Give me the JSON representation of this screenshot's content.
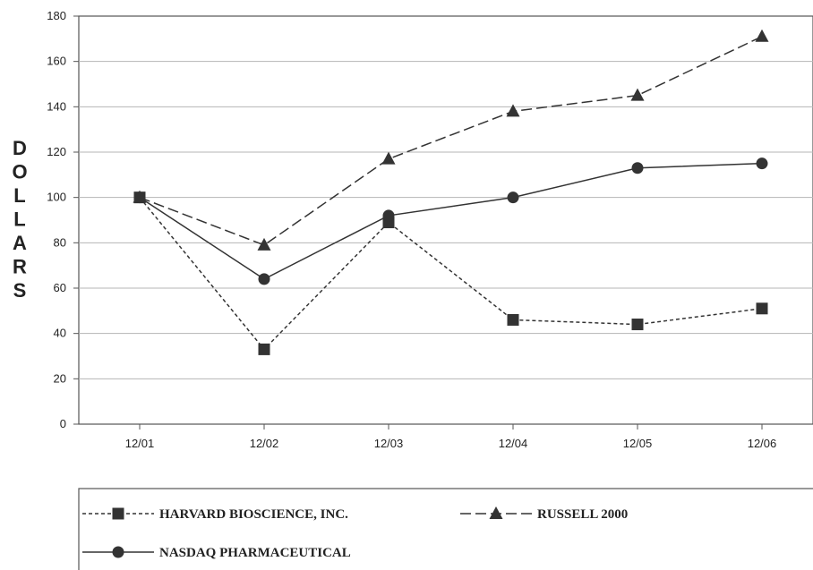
{
  "chart_data": {
    "type": "line",
    "title": "",
    "xlabel": "",
    "ylabel": "DOLLARS",
    "categories": [
      "12/01",
      "12/02",
      "12/03",
      "12/04",
      "12/05",
      "12/06"
    ],
    "ylim": [
      0,
      180
    ],
    "yticks": [
      0,
      20,
      40,
      60,
      80,
      100,
      120,
      140,
      160,
      180
    ],
    "grid": true,
    "legend_position": "bottom",
    "series": [
      {
        "name": "HARVARD BIOSCIENCE, INC.",
        "values": [
          100,
          33,
          89,
          46,
          44,
          51
        ],
        "marker": "square",
        "line": "short-dash",
        "color": "#333333"
      },
      {
        "name": "RUSSELL 2000",
        "values": [
          100,
          79,
          117,
          138,
          145,
          171
        ],
        "marker": "triangle",
        "line": "long-dash",
        "color": "#333333"
      },
      {
        "name": "NASDAQ PHARMACEUTICAL",
        "values": [
          100,
          64,
          92,
          100,
          113,
          115
        ],
        "marker": "circle",
        "line": "solid",
        "color": "#333333"
      }
    ]
  }
}
